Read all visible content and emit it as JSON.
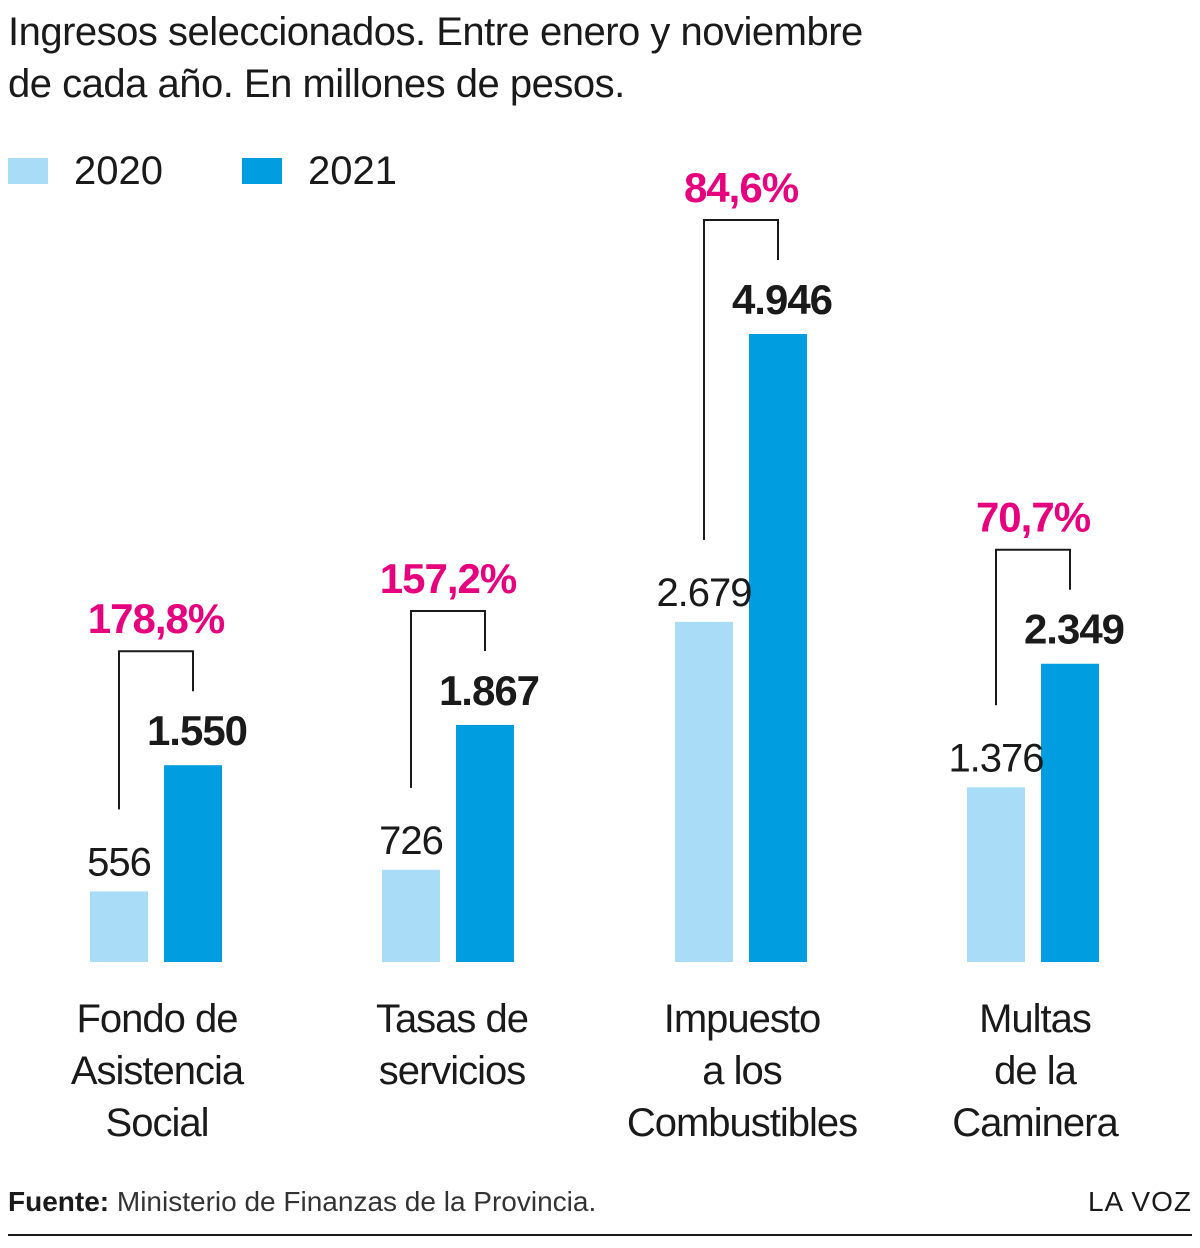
{
  "colors": {
    "series_2020": "#a8dcf7",
    "series_2021": "#009de0",
    "pct": "#e6007e",
    "text": "#1a1a1a",
    "bracket": "#1a1a1a"
  },
  "title_lines": [
    "Ingresos seleccionados. Entre enero y noviembre",
    "de cada año. En millones de pesos."
  ],
  "legend": [
    {
      "label": "2020"
    },
    {
      "label": "2021"
    }
  ],
  "chart_data": {
    "type": "bar",
    "title": "Ingresos seleccionados. Entre enero y noviembre de cada año. En millones de pesos.",
    "categories": [
      {
        "lines": [
          "Fondo de",
          "Asistencia",
          "Social"
        ]
      },
      {
        "lines": [
          "Tasas de",
          "servicios"
        ]
      },
      {
        "lines": [
          "Impuesto",
          "a los",
          "Combustibles"
        ]
      },
      {
        "lines": [
          "Multas",
          "de la",
          "Caminera"
        ]
      }
    ],
    "series": [
      {
        "name": "2020",
        "values": [
          556,
          726,
          2679,
          1376
        ],
        "labels": [
          "556",
          "726",
          "2.679",
          "1.376"
        ]
      },
      {
        "name": "2021",
        "values": [
          1550,
          1867,
          4946,
          2349
        ],
        "labels": [
          "1.550",
          "1.867",
          "4.946",
          "2.349"
        ]
      }
    ],
    "change_labels": [
      "178,8%",
      "157,2%",
      "84,6%",
      "70,7%"
    ],
    "ylim": [
      0,
      4946
    ],
    "grid": false,
    "legend_position": "top-left"
  },
  "footer": {
    "source_label": "Fuente:",
    "source_text": "Ministerio de Finanzas de la Provincia.",
    "credit": "LA VOZ"
  }
}
